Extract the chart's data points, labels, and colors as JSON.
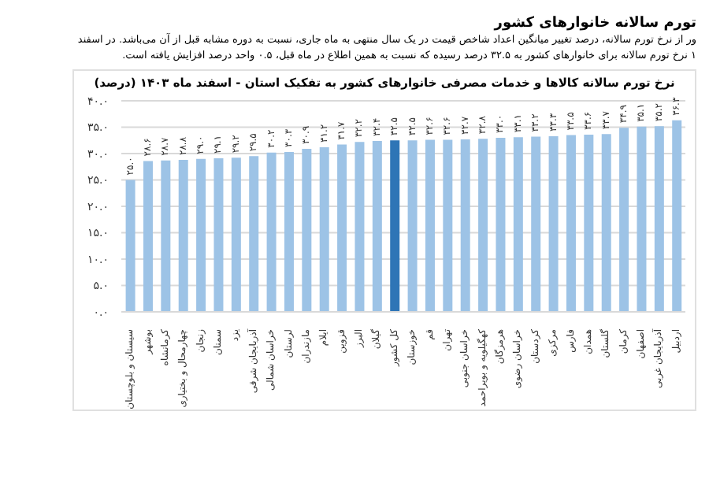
{
  "chart_data": {
    "type": "bar",
    "title": "نرخ تورم سالانه کالاها و خدمات مصرفی خانوارهای کشور به تفکیک استان - اسفند ماه ۱۴۰۳ (درصد)",
    "annotations": [
      "تورم سالانه خانوارهای کشور",
      "ور از نرخ تورم سالانه، درصد تغییر میانگین اعداد شاخص قیمت در یک سال منتهی به ماه جاری، نسبت به دوره مشابه قبل از آن می‌باشد. در اسفند",
      "۱ نرخ تورم سالانه برای خانوارهای کشور به ۳۲.۵ درصد رسیده که نسبت به همین اطلاع در ماه قبل، ۰.۵ واحد درصد افزایش یافته است."
    ],
    "categories": [
      "سیستان و بلوچستان",
      "بوشهر",
      "کرمانشاه",
      "چهارمحال و بختیاری",
      "زنجان",
      "سمنان",
      "یزد",
      "آذربایجان شرقی",
      "خراسان شمالی",
      "لرستان",
      "مازندران",
      "ایلام",
      "قزوین",
      "البرز",
      "گیلان",
      "کل کشور",
      "خوزستان",
      "قم",
      "تهران",
      "خراسان جنوبی",
      "کهگیلویه و بویراحمد",
      "هرمزگان",
      "خراسان رضوی",
      "کردستان",
      "مرکزی",
      "فارس",
      "همدان",
      "گلستان",
      "کرمان",
      "اصفهان",
      "آذربایجان غربی",
      "اردبیل"
    ],
    "values": [
      25.0,
      28.6,
      28.7,
      28.8,
      29.0,
      29.1,
      29.2,
      29.5,
      30.2,
      30.3,
      30.9,
      31.2,
      31.7,
      32.2,
      32.4,
      32.5,
      32.5,
      32.6,
      32.6,
      32.7,
      32.8,
      33.0,
      33.1,
      33.2,
      33.3,
      33.5,
      33.6,
      33.7,
      34.9,
      35.1,
      35.2,
      36.3
    ],
    "value_labels": [
      "۲۵.۰",
      "۲۸.۶",
      "۲۸.۷",
      "۲۸.۸",
      "۲۹.۰",
      "۲۹.۱",
      "۲۹.۲",
      "۲۹.۵",
      "۳۰.۲",
      "۳۰.۳",
      "۳۰.۹",
      "۳۱.۲",
      "۳۱.۷",
      "۳۲.۲",
      "۳۲.۴",
      "۳۲.۵",
      "۳۲.۵",
      "۳۲.۶",
      "۳۲.۶",
      "۳۲.۷",
      "۳۲.۸",
      "۳۳.۰",
      "۳۳.۱",
      "۳۳.۲",
      "۳۳.۳",
      "۳۳.۵",
      "۳۳.۶",
      "۳۳.۷",
      "۳۴.۹",
      "۳۵.۱",
      "۳۵.۲",
      "۳۶.۳"
    ],
    "colors": [
      "#9dc3e6",
      "#9dc3e6",
      "#9dc3e6",
      "#9dc3e6",
      "#9dc3e6",
      "#9dc3e6",
      "#9dc3e6",
      "#9dc3e6",
      "#9dc3e6",
      "#9dc3e6",
      "#9dc3e6",
      "#9dc3e6",
      "#9dc3e6",
      "#9dc3e6",
      "#9dc3e6",
      "#2e75b6",
      "#9dc3e6",
      "#9dc3e6",
      "#9dc3e6",
      "#9dc3e6",
      "#9dc3e6",
      "#9dc3e6",
      "#9dc3e6",
      "#9dc3e6",
      "#9dc3e6",
      "#9dc3e6",
      "#9dc3e6",
      "#9dc3e6",
      "#9dc3e6",
      "#9dc3e6",
      "#9dc3e6",
      "#9dc3e6"
    ],
    "ylim": [
      0,
      40
    ],
    "yticks": [
      {
        "value": 0,
        "label": "۰.۰"
      },
      {
        "value": 5,
        "label": "۵.۰"
      },
      {
        "value": 10,
        "label": "۱۰.۰"
      },
      {
        "value": 15,
        "label": "۱۵.۰"
      },
      {
        "value": 20,
        "label": "۲۰.۰"
      },
      {
        "value": 25,
        "label": "۲۵.۰"
      },
      {
        "value": 30,
        "label": "۳۰.۰"
      },
      {
        "value": 35,
        "label": "۳۵.۰"
      },
      {
        "value": 40,
        "label": "۴۰.۰"
      }
    ],
    "grid": "y",
    "legend": false
  }
}
